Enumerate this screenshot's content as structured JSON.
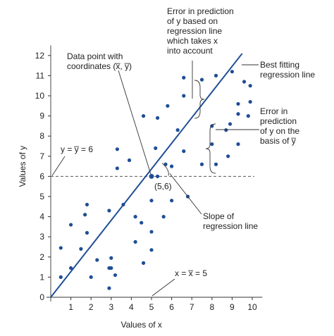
{
  "chart_data": {
    "type": "scatter",
    "xlabel": "Values of x",
    "ylabel": "Values of y",
    "xlim": [
      0,
      10.5
    ],
    "ylim": [
      0,
      12.5
    ],
    "x_ticks": [
      "1",
      "2",
      "3",
      "4",
      "5",
      "6",
      "7",
      "8",
      "9",
      "10"
    ],
    "y_ticks": [
      "0",
      "1",
      "2",
      "3",
      "4",
      "5",
      "6",
      "7",
      "8",
      "9",
      "10",
      "11",
      "12"
    ],
    "series": [
      {
        "type": "scatter",
        "points": [
          [
            0.5,
            1.0
          ],
          [
            0.5,
            2.45
          ],
          [
            1.0,
            1.45
          ],
          [
            1.0,
            3.6
          ],
          [
            1.5,
            2.4
          ],
          [
            1.7,
            4.1
          ],
          [
            1.8,
            3.2
          ],
          [
            1.8,
            4.6
          ],
          [
            2.0,
            1.0
          ],
          [
            2.3,
            1.85
          ],
          [
            2.9,
            0.45
          ],
          [
            2.9,
            1.45
          ],
          [
            2.9,
            4.3
          ],
          [
            3.0,
            1.95
          ],
          [
            3.0,
            1.45
          ],
          [
            3.2,
            1.1
          ],
          [
            3.3,
            6.4
          ],
          [
            3.3,
            7.35
          ],
          [
            3.6,
            4.6
          ],
          [
            3.9,
            6.8
          ],
          [
            4.2,
            4.0
          ],
          [
            4.2,
            2.75
          ],
          [
            4.5,
            3.7
          ],
          [
            4.6,
            1.7
          ],
          [
            4.6,
            9.0
          ],
          [
            5.0,
            2.35
          ],
          [
            5.0,
            3.25
          ],
          [
            5.0,
            4.8
          ],
          [
            5.2,
            7.4
          ],
          [
            5.3,
            8.9
          ],
          [
            5.3,
            6.0
          ],
          [
            5.6,
            4.0
          ],
          [
            5.7,
            6.6
          ],
          [
            5.8,
            9.5
          ],
          [
            6.0,
            6.5
          ],
          [
            6.0,
            4.8
          ],
          [
            6.3,
            8.3
          ],
          [
            6.6,
            7.25
          ],
          [
            6.6,
            10.9
          ],
          [
            6.8,
            5.0
          ],
          [
            7.5,
            6.6
          ],
          [
            7.5,
            10.8
          ],
          [
            8.0,
            8.5
          ],
          [
            8.2,
            11.0
          ],
          [
            8.2,
            6.6
          ],
          [
            8.7,
            8.3
          ],
          [
            8.8,
            7.0
          ],
          [
            8.9,
            8.6
          ],
          [
            9.0,
            11.2
          ],
          [
            9.3,
            9.1
          ],
          [
            9.3,
            7.6
          ],
          [
            9.3,
            9.6
          ],
          [
            9.6,
            10.7
          ],
          [
            9.8,
            9.0
          ],
          [
            9.9,
            10.5
          ],
          [
            9.9,
            9.7
          ],
          [
            6.6,
            10.0
          ],
          [
            8.0,
            7.6
          ]
        ]
      }
    ],
    "regression_line": {
      "x": [
        0.0,
        9.5
      ],
      "y": [
        0.0,
        12.1
      ]
    },
    "mean_x": 5,
    "mean_y": 6,
    "annotations": {
      "mean_point_label": "(5,6)",
      "y_mean_label": "y = y̅ = 6",
      "x_mean_label": "x = x̅ = 5",
      "data_point": [
        "Data point with",
        "coordinates (x̅, y̅)"
      ],
      "error_top": [
        "Error in prediction",
        "of y based on",
        "regression line",
        "which takes x",
        "into account"
      ],
      "best_fit": [
        "Best fitting",
        "regression line"
      ],
      "error_right": [
        "Error in",
        "prediction",
        "of y on the",
        "basis of y̅"
      ],
      "slope": [
        "Slope of",
        "regression line"
      ]
    }
  }
}
